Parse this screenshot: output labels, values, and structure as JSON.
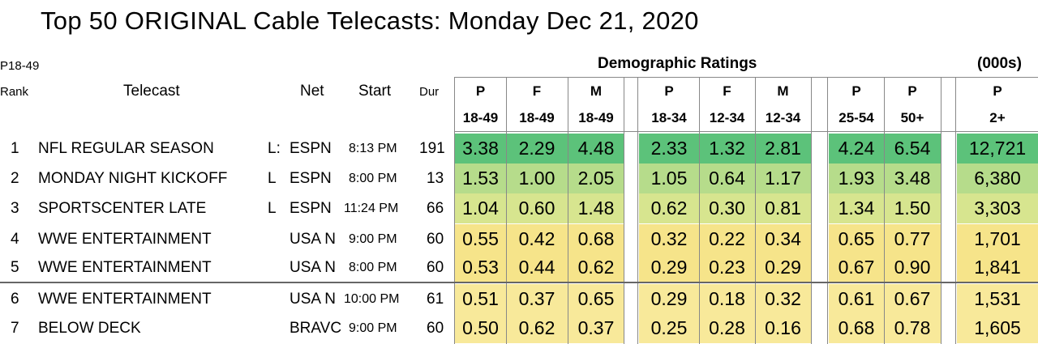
{
  "title": "Top 50 ORIGINAL Cable Telecasts:   Monday Dec 21, 2020",
  "header": {
    "p1849": "P18-49",
    "rank": "Rank",
    "telecast": "Telecast",
    "net": "Net",
    "start": "Start",
    "dur": "Dur",
    "demographic": "Demographic Ratings",
    "thousands": "(000s)"
  },
  "columns": [
    {
      "top": "P",
      "bottom": "18-49"
    },
    {
      "top": "F",
      "bottom": "18-49"
    },
    {
      "top": "M",
      "bottom": "18-49"
    },
    {
      "top": "P",
      "bottom": "18-34"
    },
    {
      "top": "F",
      "bottom": "12-34"
    },
    {
      "top": "M",
      "bottom": "12-34"
    },
    {
      "top": "P",
      "bottom": "25-54"
    },
    {
      "top": "P",
      "bottom": "50+"
    },
    {
      "top": "P",
      "bottom": "2+"
    }
  ],
  "rows": [
    {
      "rank": "1",
      "telecast": "NFL REGULAR SEASON",
      "live": "L:",
      "net": "ESPN",
      "start": "8:13 PM",
      "dur": "191",
      "values": [
        "3.38",
        "2.29",
        "4.48",
        "2.33",
        "1.32",
        "2.81",
        "4.24",
        "6.54",
        "12,721"
      ]
    },
    {
      "rank": "2",
      "telecast": "MONDAY NIGHT KICKOFF",
      "live": "L",
      "net": "ESPN",
      "start": "8:00 PM",
      "dur": "13",
      "values": [
        "1.53",
        "1.00",
        "2.05",
        "1.05",
        "0.64",
        "1.17",
        "1.93",
        "3.48",
        "6,380"
      ]
    },
    {
      "rank": "3",
      "telecast": "SPORTSCENTER LATE",
      "live": "L",
      "net": "ESPN",
      "start": "11:24 PM",
      "dur": "66",
      "values": [
        "1.04",
        "0.60",
        "1.48",
        "0.62",
        "0.30",
        "0.81",
        "1.34",
        "1.50",
        "3,303"
      ]
    },
    {
      "rank": "4",
      "telecast": "WWE ENTERTAINMENT",
      "live": "",
      "net": "USA N",
      "start": "9:00 PM",
      "dur": "60",
      "values": [
        "0.55",
        "0.42",
        "0.68",
        "0.32",
        "0.22",
        "0.34",
        "0.65",
        "0.77",
        "1,701"
      ]
    },
    {
      "rank": "5",
      "telecast": "WWE ENTERTAINMENT",
      "live": "",
      "net": "USA N",
      "start": "8:00 PM",
      "dur": "60",
      "values": [
        "0.53",
        "0.44",
        "0.62",
        "0.29",
        "0.23",
        "0.29",
        "0.67",
        "0.90",
        "1,841"
      ]
    },
    {
      "rank": "6",
      "telecast": "WWE ENTERTAINMENT",
      "live": "",
      "net": "USA N",
      "start": "10:00 PM",
      "dur": "61",
      "values": [
        "0.51",
        "0.37",
        "0.65",
        "0.29",
        "0.18",
        "0.32",
        "0.61",
        "0.67",
        "1,531"
      ]
    },
    {
      "rank": "7",
      "telecast": "BELOW DECK",
      "live": "",
      "net": "BRAVC",
      "start": "9:00 PM",
      "dur": "60",
      "values": [
        "0.50",
        "0.62",
        "0.37",
        "0.25",
        "0.28",
        "0.16",
        "0.68",
        "0.78",
        "1,605"
      ]
    }
  ],
  "colors": {
    "strong_green": "#5cc27a",
    "light_green": "#b6dc8b",
    "pale_green": "#d7e58f",
    "yellow": "#f6e48a",
    "pale_yellow": "#f8e99a"
  }
}
